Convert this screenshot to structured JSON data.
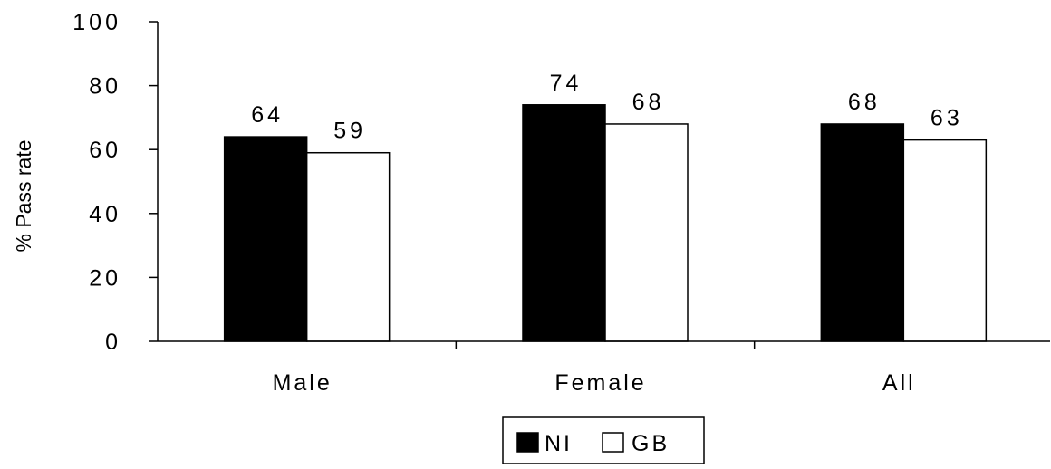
{
  "chart_data": {
    "type": "bar",
    "categories": [
      "Male",
      "Female",
      "All"
    ],
    "series": [
      {
        "name": "NI",
        "values": [
          64,
          74,
          68
        ],
        "color": "#000000"
      },
      {
        "name": "GB",
        "values": [
          59,
          68,
          63
        ],
        "color": "#ffffff"
      }
    ],
    "data_labels": [
      [
        "64",
        "74",
        "68"
      ],
      [
        "59",
        "68",
        "63"
      ]
    ],
    "ylabel": "% Pass rate",
    "ylim": [
      0,
      100
    ],
    "yticks": [
      0,
      20,
      40,
      60,
      80,
      100
    ],
    "ytick_labels": [
      "0",
      "20",
      "40",
      "60",
      "80",
      "100"
    ],
    "grid": false,
    "legend_position": "bottom-center"
  }
}
